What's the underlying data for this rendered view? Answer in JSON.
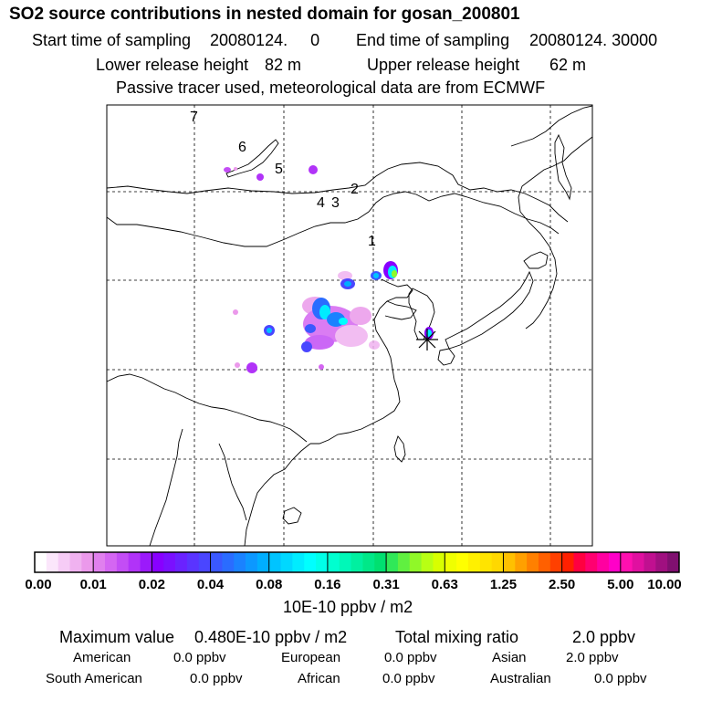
{
  "header": {
    "title": "SO2 source contributions in nested domain for gosan_200801",
    "start_label": "Start time of sampling",
    "start_value": "20080124.     0",
    "end_label": "End time of sampling",
    "end_value": "20080124. 30000",
    "lower_label": "Lower release height",
    "lower_value": "82 m",
    "upper_label": "Upper release height",
    "upper_value": "62 m",
    "note": "Passive tracer used, meteorological data are from ECMWF"
  },
  "chart_data": {
    "type": "heatmap",
    "title": "SO2 source contributions in nested domain for gosan_200801",
    "unit": "10E-10 ppbv / m2",
    "colorbar_ticks": [
      "0.00",
      "0.01",
      "0.02",
      "0.04",
      "0.08",
      "0.16",
      "0.31",
      "0.63",
      "1.25",
      "2.50",
      "5.00",
      "10.00"
    ],
    "colorbar_colors": [
      [
        "#ffffff",
        "#fbe6fb",
        "#f6ccf6",
        "#f0b2f0",
        "#eb99eb"
      ],
      [
        "#e080ee",
        "#d466f2",
        "#c34df5",
        "#b133f8",
        "#9b1afb"
      ],
      [
        "#8800ff",
        "#7a10ff",
        "#6a22ff",
        "#5a34ff",
        "#4a46ff"
      ],
      [
        "#3a58ff",
        "#2a6cff",
        "#1a82ff",
        "#0c98ff",
        "#00aeff"
      ],
      [
        "#00c4ff",
        "#00d8ff",
        "#00ecff",
        "#00ffff",
        "#00ffe8"
      ],
      [
        "#00ffd0",
        "#00f8b8",
        "#00f0a0",
        "#00e888",
        "#00e070"
      ],
      [
        "#30e858",
        "#60f040",
        "#90f828",
        "#b8ff14",
        "#d8ff00"
      ],
      [
        "#f0ff00",
        "#ffff00",
        "#fff000",
        "#ffe400",
        "#ffd800"
      ],
      [
        "#ffc000",
        "#ffa000",
        "#ff8000",
        "#ff6000",
        "#ff4000"
      ],
      [
        "#ff2000",
        "#ff0040",
        "#ff0070",
        "#ff00a0",
        "#ff00c8"
      ],
      [
        "#ff10b0",
        "#e010a0",
        "#c01090",
        "#a01080",
        "#801070"
      ]
    ],
    "receptor_marker": "*",
    "source_markers": [
      "1",
      "2",
      "3",
      "4",
      "5",
      "6",
      "7"
    ]
  },
  "summary": {
    "max_label": "Maximum value",
    "max_value": "0.480E-10 ppbv / m2",
    "total_label": "Total mixing ratio",
    "total_value": "2.0 ppbv",
    "regions": [
      {
        "name": "American",
        "value": "0.0 ppbv"
      },
      {
        "name": "European",
        "value": "0.0 ppbv"
      },
      {
        "name": "Asian",
        "value": "2.0 ppbv"
      },
      {
        "name": "South American",
        "value": "0.0 ppbv"
      },
      {
        "name": "African",
        "value": "0.0 ppbv"
      },
      {
        "name": "Australian",
        "value": "0.0 ppbv"
      }
    ]
  }
}
